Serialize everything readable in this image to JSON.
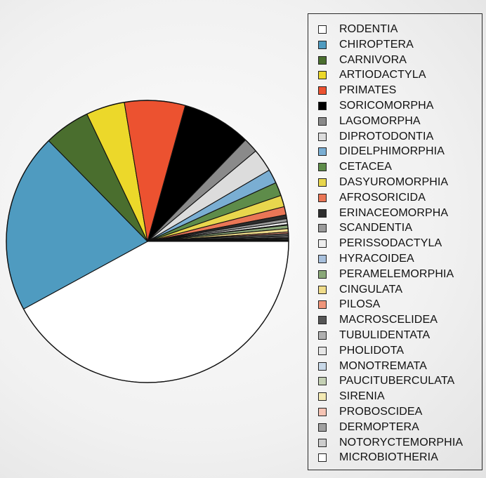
{
  "chart_data": {
    "type": "pie",
    "start_angle_deg": 0,
    "direction": "clockwise",
    "legend_position": "right",
    "categories": [
      "RODENTIA",
      "CHIROPTERA",
      "CARNIVORA",
      "ARTIODACTYLA",
      "PRIMATES",
      "SORICOMORPHA",
      "LAGOMORPHA",
      "DIPROTODONTIA",
      "DIDELPHIMORPHIA",
      "CETACEA",
      "DASYUROMORPHIA",
      "AFROSORICIDA",
      "ERINACEOMORPHA",
      "SCANDENTIA",
      "PERISSODACTYLA",
      "HYRACOIDEA",
      "PERAMELEMORPHIA",
      "CINGULATA",
      "PILOSA",
      "MACROSCELIDEA",
      "TUBULIDENTATA",
      "PHOLIDOTA",
      "MONOTREMATA",
      "PAUCITUBERCULATA",
      "SIRENIA",
      "PROBOSCIDEA",
      "DERMOPTERA",
      "NOTORYCTEMORPHIA",
      "MICROBIOTHERIA"
    ],
    "values": [
      2277,
      1116,
      286,
      240,
      376,
      428,
      92,
      143,
      87,
      84,
      71,
      51,
      24,
      20,
      16,
      4,
      21,
      21,
      10,
      15,
      1,
      8,
      5,
      6,
      5,
      3,
      2,
      2,
      1
    ],
    "colors": [
      "#ffffff",
      "#4f9bc0",
      "#4a6e2e",
      "#ecd82a",
      "#ec5230",
      "#000000",
      "#8a8a8a",
      "#dcdcdc",
      "#7aaed3",
      "#5e8c4a",
      "#e8d64d",
      "#ea7656",
      "#2e2e2e",
      "#9a9a9a",
      "#eeeeee",
      "#a8c0dc",
      "#8aa878",
      "#f0dc8a",
      "#f0957a",
      "#555555",
      "#b0b0b0",
      "#e6e6e6",
      "#c8d8e8",
      "#c4d0b4",
      "#f4eab4",
      "#f6c4b4",
      "#a0a0a0",
      "#cccccc",
      "#ffffff"
    ]
  }
}
